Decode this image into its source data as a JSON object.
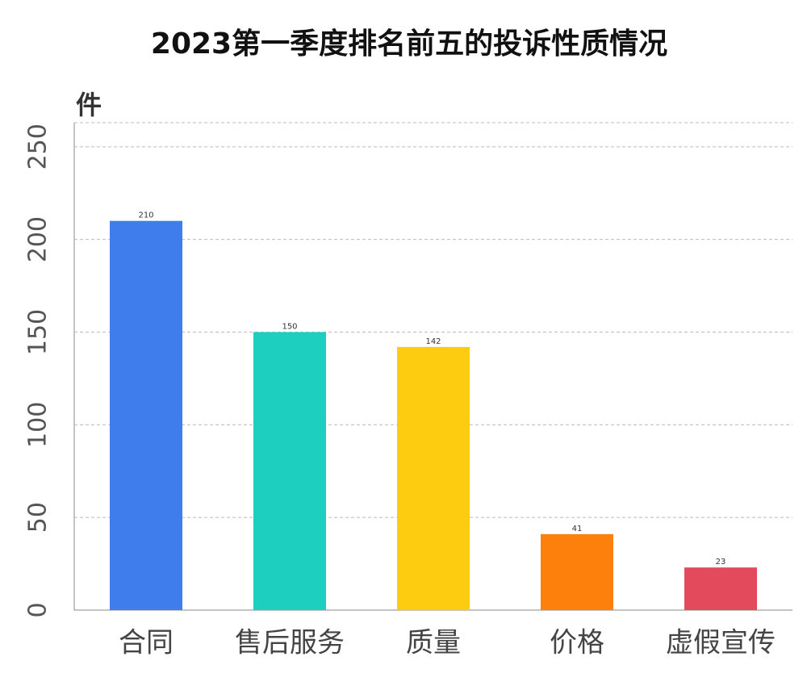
{
  "chart_data": {
    "type": "bar",
    "title": "2023第一季度排名前五的投诉性质情况",
    "y_label": "件",
    "categories": [
      "合同",
      "售后服务",
      "质量",
      "价格",
      "虚假宣传"
    ],
    "values": [
      210,
      150,
      142,
      41,
      23
    ],
    "colors": [
      "#3f7ded",
      "#1ccfbf",
      "#fdcb0f",
      "#fd7f0c",
      "#e34b5d"
    ],
    "ylim": [
      0,
      263
    ],
    "yticks": [
      0,
      50,
      100,
      150,
      200,
      250
    ],
    "grid": true
  }
}
